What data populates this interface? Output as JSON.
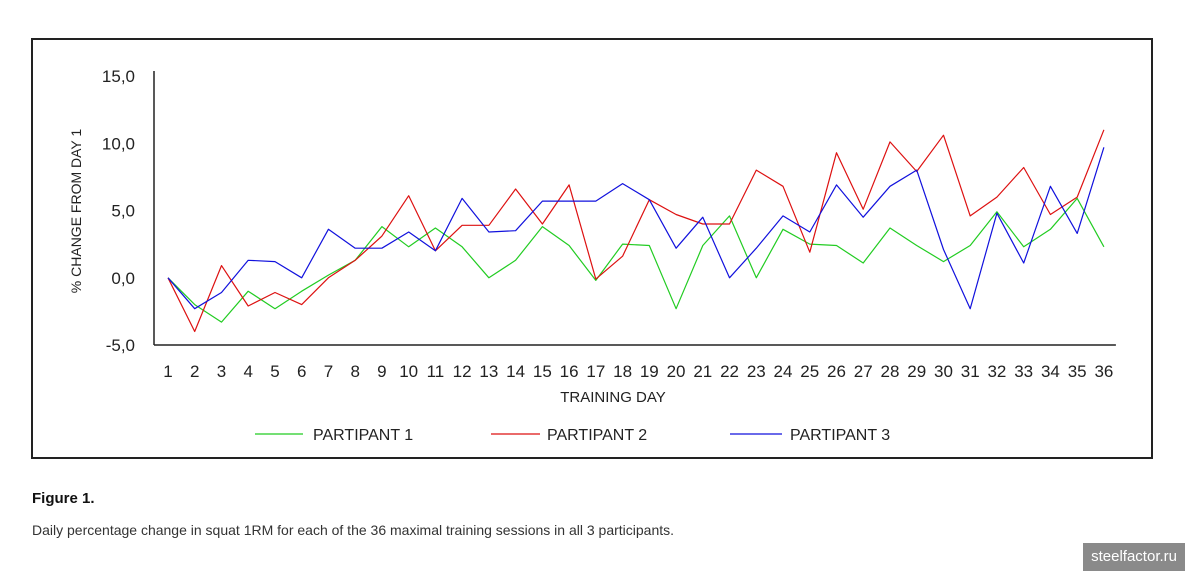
{
  "figure": {
    "title": "Figure 1.",
    "caption": "Daily percentage change in squat 1RM for each of the 36 maximal training sessions in all 3 participants."
  },
  "watermark": "steelfactor.ru",
  "chart_data": {
    "type": "line",
    "xlabel": "TRAINING DAY",
    "ylabel": "% CHANGE FROM DAY 1",
    "ylim": [
      -5,
      15
    ],
    "yticks": [
      "15,0",
      "10,0",
      "5,0",
      "0,0",
      "-5,0"
    ],
    "ytick_values": [
      15,
      10,
      5,
      0,
      -5
    ],
    "x": [
      1,
      2,
      3,
      4,
      5,
      6,
      7,
      8,
      9,
      10,
      11,
      12,
      13,
      14,
      15,
      16,
      17,
      18,
      19,
      20,
      21,
      22,
      23,
      24,
      25,
      26,
      27,
      28,
      29,
      30,
      31,
      32,
      33,
      34,
      35,
      36
    ],
    "grid": false,
    "legend_position": "bottom",
    "series": [
      {
        "name": "PARTIPANT 1",
        "color": "#22cc22",
        "values": [
          0.0,
          -2.0,
          -3.3,
          -1.0,
          -2.3,
          -1.0,
          0.2,
          1.3,
          3.8,
          2.3,
          3.7,
          2.3,
          0.0,
          1.3,
          3.8,
          2.4,
          -0.2,
          2.5,
          2.4,
          -2.3,
          2.4,
          4.6,
          0.0,
          3.6,
          2.5,
          2.4,
          1.1,
          3.7,
          2.4,
          1.2,
          2.4,
          4.9,
          2.3,
          3.6,
          5.9,
          2.3
        ]
      },
      {
        "name": "PARTIPANT 2",
        "color": "#dd1111",
        "values": [
          0.0,
          -4.0,
          0.9,
          -2.1,
          -1.1,
          -2.0,
          0.0,
          1.3,
          3.1,
          6.1,
          2.0,
          3.9,
          3.9,
          6.6,
          4.0,
          6.9,
          -0.1,
          1.6,
          5.8,
          4.7,
          4.0,
          4.0,
          8.0,
          6.8,
          1.9,
          9.3,
          5.1,
          10.1,
          7.9,
          10.6,
          4.6,
          6.0,
          8.2,
          4.7,
          6.0,
          11.0
        ]
      },
      {
        "name": "PARTIPANT 3",
        "color": "#1111dd",
        "values": [
          0.0,
          -2.3,
          -1.1,
          1.3,
          1.2,
          0.0,
          3.6,
          2.2,
          2.2,
          3.4,
          2.0,
          5.9,
          3.4,
          3.5,
          5.7,
          5.7,
          5.7,
          7.0,
          5.8,
          2.2,
          4.5,
          0.0,
          2.2,
          4.6,
          3.4,
          6.9,
          4.5,
          6.8,
          8.0,
          2.1,
          -2.3,
          4.8,
          1.1,
          6.8,
          3.3,
          9.7
        ]
      }
    ]
  }
}
